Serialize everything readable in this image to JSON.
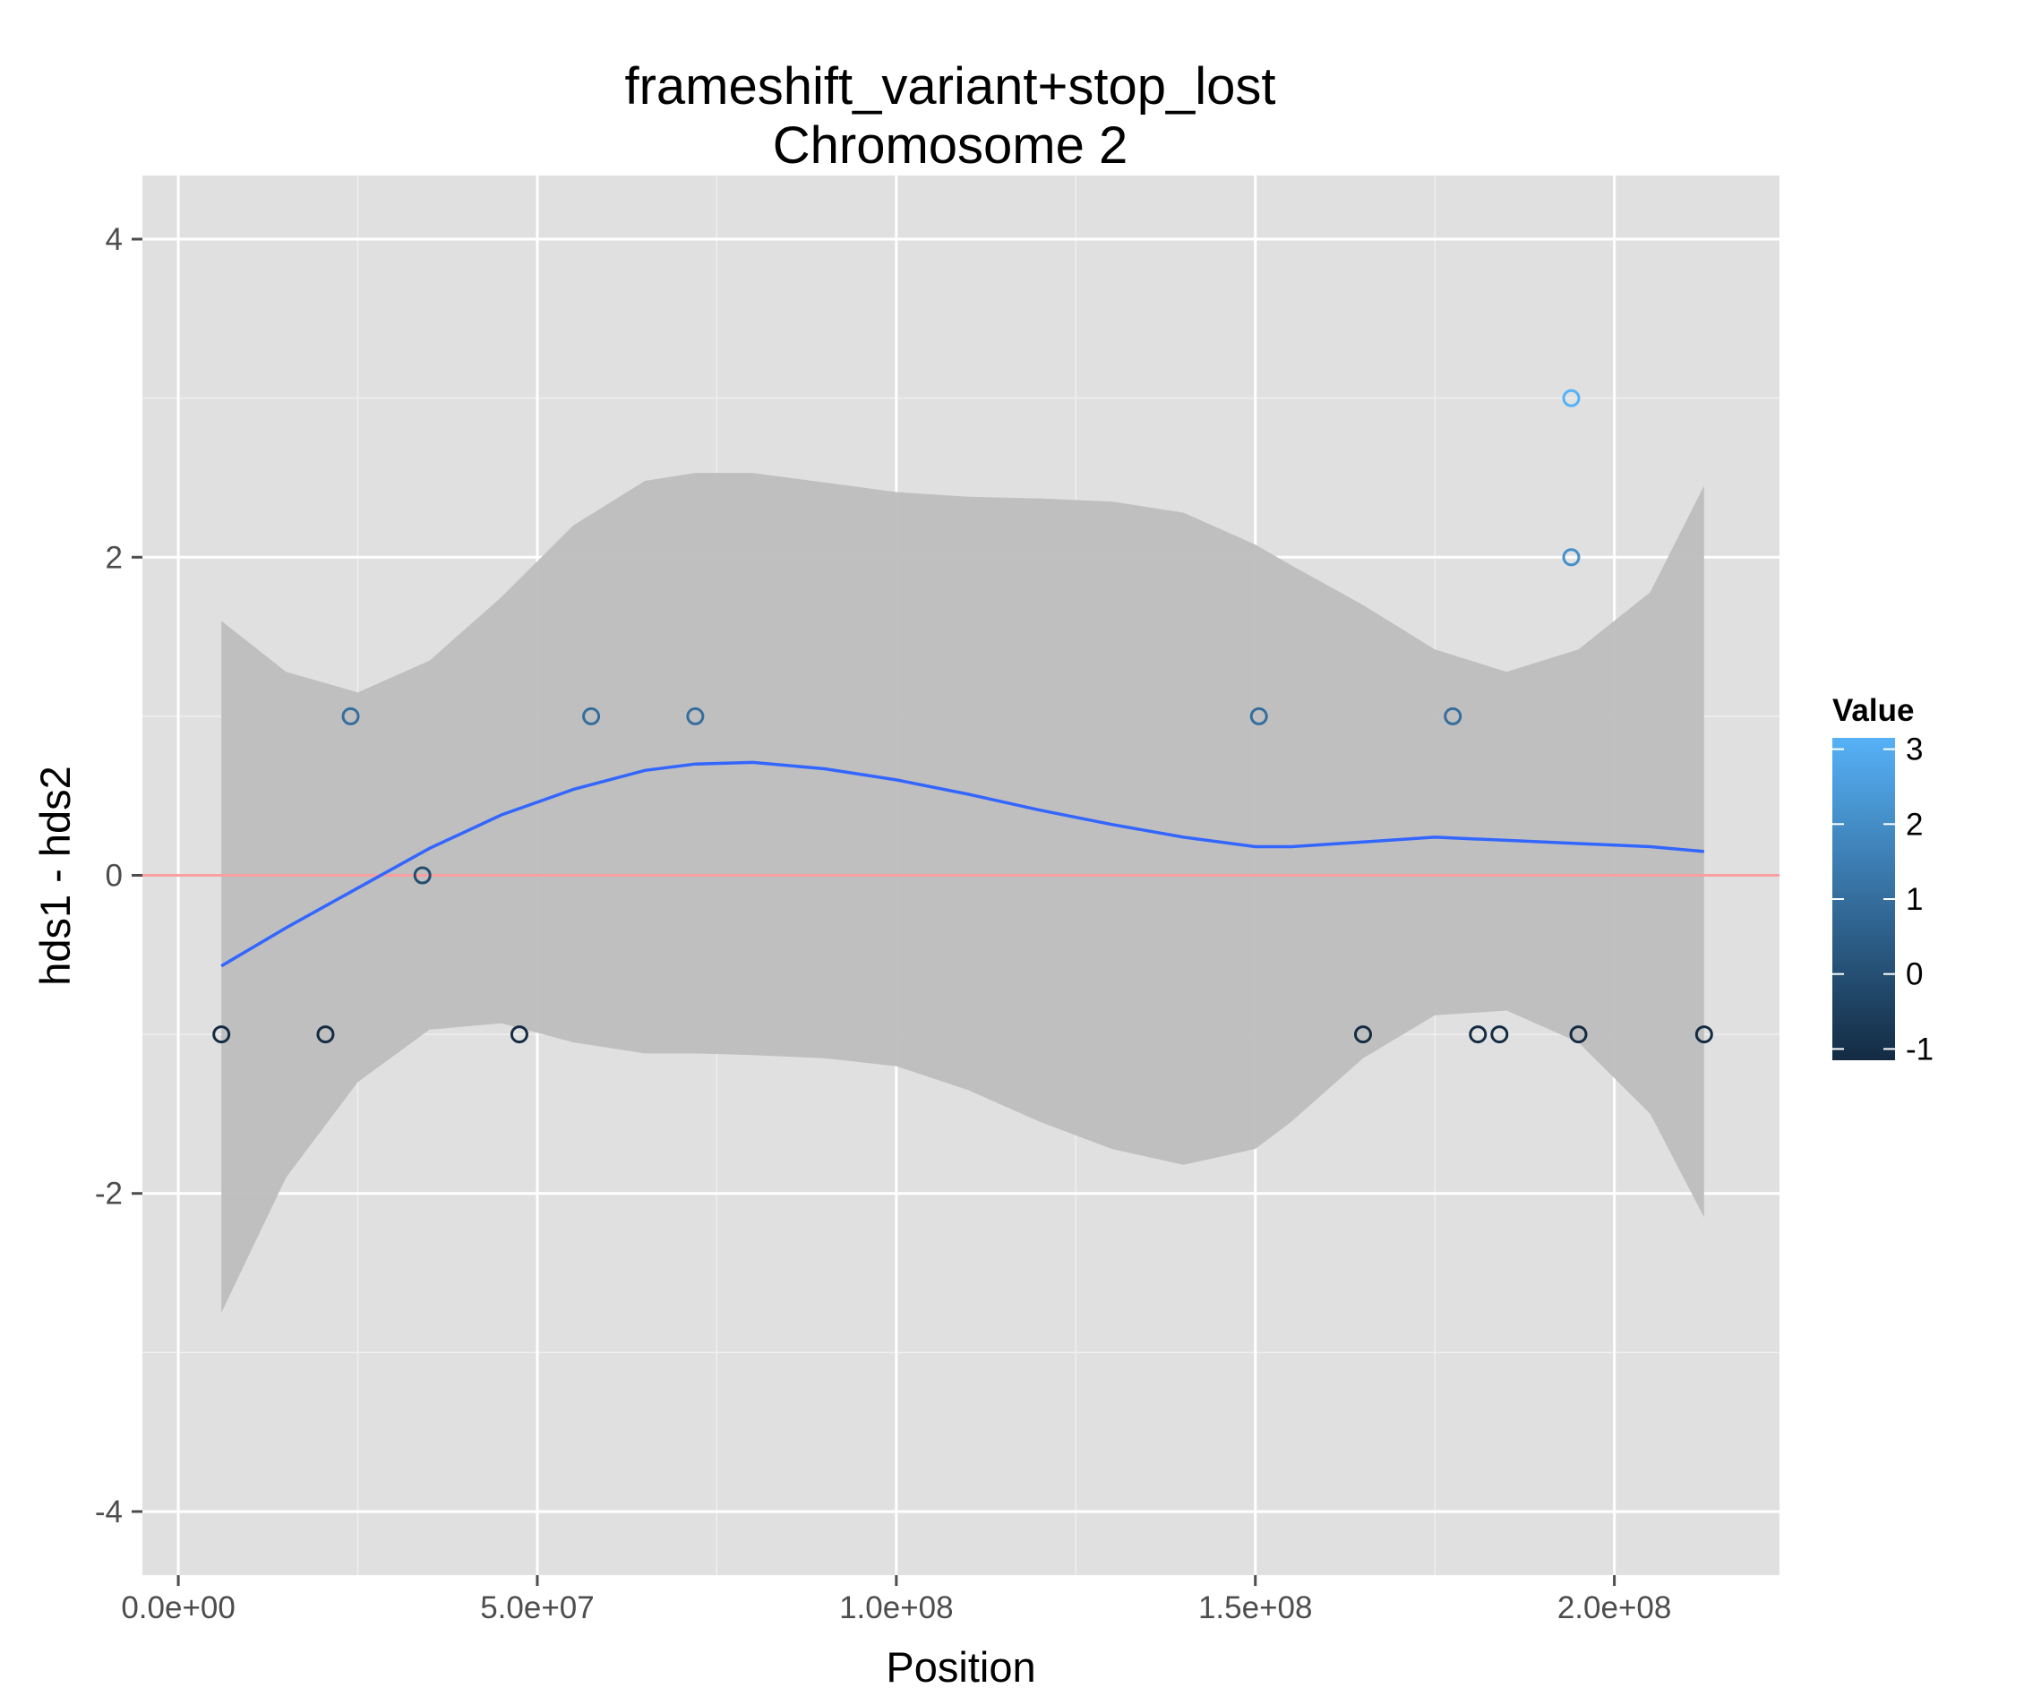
{
  "chart_data": {
    "type": "scatter",
    "title": "frameshift_variant+stop_lost",
    "subtitle": "Chromosome 2",
    "xlabel": "Position",
    "ylabel": "hds1 - hds2",
    "xlim": [
      -5000000,
      223000000
    ],
    "ylim": [
      -4.4,
      4.4
    ],
    "x_ticks": [
      {
        "value": 0,
        "label": "0.0e+00"
      },
      {
        "value": 50000000,
        "label": "5.0e+07"
      },
      {
        "value": 100000000,
        "label": "1.0e+08"
      },
      {
        "value": 150000000,
        "label": "1.5e+08"
      },
      {
        "value": 200000000,
        "label": "2.0e+08"
      }
    ],
    "y_ticks": [
      {
        "value": 4,
        "label": "4"
      },
      {
        "value": 2,
        "label": "2"
      },
      {
        "value": 0,
        "label": "0"
      },
      {
        "value": -2,
        "label": "-2"
      },
      {
        "value": -4,
        "label": "-4"
      }
    ],
    "grid": true,
    "reference_line": {
      "y": 0,
      "color": "#f8a0a0"
    },
    "points": [
      {
        "x": 6000000,
        "y": -1
      },
      {
        "x": 20500000,
        "y": -1
      },
      {
        "x": 24000000,
        "y": 1
      },
      {
        "x": 34000000,
        "y": 0
      },
      {
        "x": 47500000,
        "y": -1
      },
      {
        "x": 57500000,
        "y": 1
      },
      {
        "x": 72000000,
        "y": 1
      },
      {
        "x": 150500000,
        "y": 1
      },
      {
        "x": 165000000,
        "y": -1
      },
      {
        "x": 177500000,
        "y": 1
      },
      {
        "x": 181000000,
        "y": -1
      },
      {
        "x": 184000000,
        "y": -1
      },
      {
        "x": 194000000,
        "y": 3
      },
      {
        "x": 194000000,
        "y": 2
      },
      {
        "x": 195000000,
        "y": -1
      },
      {
        "x": 212500000,
        "y": -1
      }
    ],
    "smooth": {
      "color": "#3366ff",
      "band_color": "#bdbdbd",
      "x": [
        6000000,
        15000000,
        25000000,
        35000000,
        45000000,
        55000000,
        65000000,
        72000000,
        80000000,
        90000000,
        100000000,
        110000000,
        120000000,
        130000000,
        140000000,
        150000000,
        155000000,
        165000000,
        175000000,
        185000000,
        195000000,
        205000000,
        212500000
      ],
      "y": [
        -0.57,
        -0.33,
        -0.08,
        0.17,
        0.38,
        0.54,
        0.66,
        0.7,
        0.71,
        0.67,
        0.6,
        0.51,
        0.41,
        0.32,
        0.24,
        0.18,
        0.18,
        0.21,
        0.24,
        0.22,
        0.2,
        0.18,
        0.15
      ],
      "upper": [
        1.6,
        1.28,
        1.15,
        1.35,
        1.75,
        2.2,
        2.48,
        2.53,
        2.53,
        2.47,
        2.41,
        2.38,
        2.37,
        2.35,
        2.28,
        2.08,
        1.95,
        1.7,
        1.42,
        1.28,
        1.42,
        1.78,
        2.45
      ],
      "lower": [
        -2.75,
        -1.9,
        -1.3,
        -0.97,
        -0.93,
        -1.05,
        -1.12,
        -1.12,
        -1.13,
        -1.15,
        -1.2,
        -1.35,
        -1.55,
        -1.72,
        -1.82,
        -1.72,
        -1.55,
        -1.15,
        -0.88,
        -0.85,
        -1.05,
        -1.5,
        -2.15
      ]
    },
    "legend": {
      "title": "Value",
      "position": "right",
      "low_color": "#132b43",
      "high_color": "#56b1f7",
      "min": -1,
      "max": 3,
      "ticks": [
        {
          "value": 3,
          "label": "3"
        },
        {
          "value": 2,
          "label": "2"
        },
        {
          "value": 1,
          "label": "1"
        },
        {
          "value": 0,
          "label": "0"
        },
        {
          "value": -1,
          "label": "-1"
        }
      ]
    },
    "colors": {
      "panel_background": "#e0e0e0",
      "grid_major": "#ffffff",
      "grid_minor": "#efefef"
    }
  }
}
